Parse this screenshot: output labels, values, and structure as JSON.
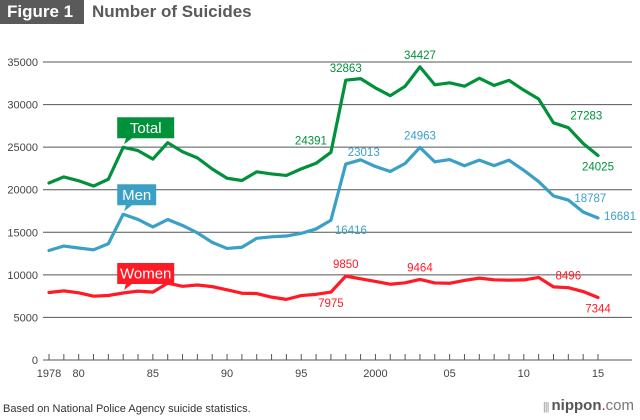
{
  "header": {
    "badge": "Figure 1",
    "title": "Number of Suicides"
  },
  "footer": {
    "source": "Based on National Police Agency suicide statistics.",
    "brand_name": "nippon",
    "brand_dot": ".",
    "brand_tld": "com",
    "brand_mark": "|||"
  },
  "chart_data": {
    "type": "line",
    "title": "Number of Suicides",
    "xlabel": "",
    "ylabel": "",
    "ylim": [
      0,
      35000
    ],
    "xlim": [
      1978,
      2015
    ],
    "yticks": [
      0,
      5000,
      10000,
      15000,
      20000,
      25000,
      30000,
      35000
    ],
    "xtick_labels": [
      {
        "year": 1978,
        "label": "1978"
      },
      {
        "year": 1980,
        "label": "80"
      },
      {
        "year": 1985,
        "label": "85"
      },
      {
        "year": 1990,
        "label": "90"
      },
      {
        "year": 1995,
        "label": "95"
      },
      {
        "year": 2000,
        "label": "2000"
      },
      {
        "year": 2005,
        "label": "05"
      },
      {
        "year": 2010,
        "label": "10"
      },
      {
        "year": 2015,
        "label": "15"
      }
    ],
    "grid": true,
    "x": [
      1978,
      1979,
      1980,
      1981,
      1982,
      1983,
      1984,
      1985,
      1986,
      1987,
      1988,
      1989,
      1990,
      1991,
      1992,
      1993,
      1994,
      1995,
      1996,
      1997,
      1998,
      1999,
      2000,
      2001,
      2002,
      2003,
      2004,
      2005,
      2006,
      2007,
      2008,
      2009,
      2010,
      2011,
      2012,
      2013,
      2014,
      2015
    ],
    "series": [
      {
        "name": "Total",
        "color": "#00913a",
        "values": [
          20788,
          21503,
          21048,
          20434,
          21228,
          24985,
          24596,
          23599,
          25524,
          24460,
          23742,
          22436,
          21346,
          21084,
          22104,
          21851,
          21679,
          22445,
          23104,
          24391,
          32863,
          33048,
          31957,
          31042,
          32143,
          34427,
          32325,
          32552,
          32155,
          33093,
          32249,
          32845,
          31690,
          30651,
          27858,
          27283,
          25427,
          24025
        ],
        "labels": [
          {
            "year": 1997,
            "text": "24391",
            "pos": "left-above"
          },
          {
            "year": 1998,
            "text": "32863",
            "pos": "above"
          },
          {
            "year": 2003,
            "text": "34427",
            "pos": "above"
          },
          {
            "year": 2013,
            "text": "27283",
            "pos": "right-above"
          },
          {
            "year": 2015,
            "text": "24025",
            "pos": "below"
          }
        ],
        "tag": {
          "text": "Total",
          "year": 1983
        }
      },
      {
        "name": "Men",
        "color": "#3aa0c6",
        "values": [
          12859,
          13386,
          13155,
          12942,
          13654,
          17116,
          16508,
          15624,
          16497,
          15802,
          14934,
          13818,
          13102,
          13242,
          14296,
          14468,
          14560,
          14874,
          15393,
          16416,
          23013,
          23512,
          22727,
          22144,
          23080,
          24963,
          23272,
          23540,
          22813,
          23478,
          22831,
          23472,
          22283,
          20955,
          19273,
          18787,
          17386,
          16681
        ],
        "labels": [
          {
            "year": 1997,
            "text": "16416",
            "pos": "right-below"
          },
          {
            "year": 1998,
            "text": "23013",
            "pos": "right-above"
          },
          {
            "year": 2003,
            "text": "24963",
            "pos": "above"
          },
          {
            "year": 2013,
            "text": "18787",
            "pos": "right"
          },
          {
            "year": 2015,
            "text": "16681",
            "pos": "right"
          }
        ],
        "tag": {
          "text": "Men",
          "year": 1983
        }
      },
      {
        "name": "Women",
        "color": "#ff1a26",
        "values": [
          7929,
          8117,
          7893,
          7492,
          7574,
          7869,
          8088,
          7975,
          9027,
          8658,
          8808,
          8618,
          8244,
          7842,
          7808,
          7383,
          7119,
          7571,
          7711,
          7975,
          9850,
          9536,
          9230,
          8898,
          9063,
          9464,
          9053,
          9012,
          9342,
          9615,
          9418,
          9373,
          9407,
          9696,
          8585,
          8496,
          8041,
          7344
        ],
        "labels": [
          {
            "year": 1997,
            "text": "7975",
            "pos": "below"
          },
          {
            "year": 1998,
            "text": "9850",
            "pos": "above"
          },
          {
            "year": 2003,
            "text": "9464",
            "pos": "above"
          },
          {
            "year": 2013,
            "text": "8496",
            "pos": "above"
          },
          {
            "year": 2015,
            "text": "7344",
            "pos": "below"
          }
        ],
        "tag": {
          "text": "Women",
          "year": 1983
        }
      }
    ]
  }
}
